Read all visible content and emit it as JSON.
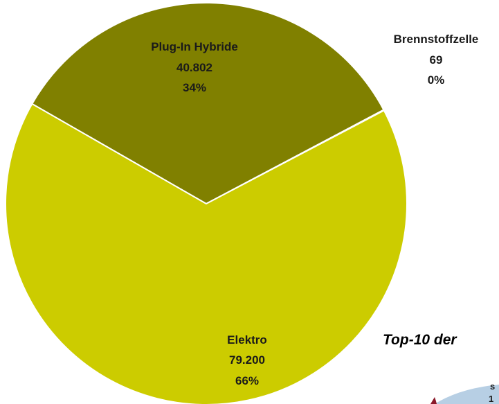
{
  "chart_data": {
    "type": "pie",
    "slices": [
      {
        "label": "Plug-In Hybride",
        "value": 40802,
        "value_label": "40.802",
        "percent_label": "34%",
        "color": "#808000"
      },
      {
        "label": "Brennstoffzelle",
        "value": 69,
        "value_label": "69",
        "percent_label": "0%",
        "color": "#c0392b"
      },
      {
        "label": "Elektro",
        "value": 79200,
        "value_label": "79.200",
        "percent_label": "66%",
        "color": "#cccc00"
      }
    ],
    "edge_color": "#ffffff"
  },
  "partial_chart": {
    "title_fragment": "Top-10 der",
    "label_fragment_1": "s",
    "label_fragment_2": "1",
    "slice_colors": [
      "#b7cfe4",
      "#8b1a2b"
    ]
  }
}
